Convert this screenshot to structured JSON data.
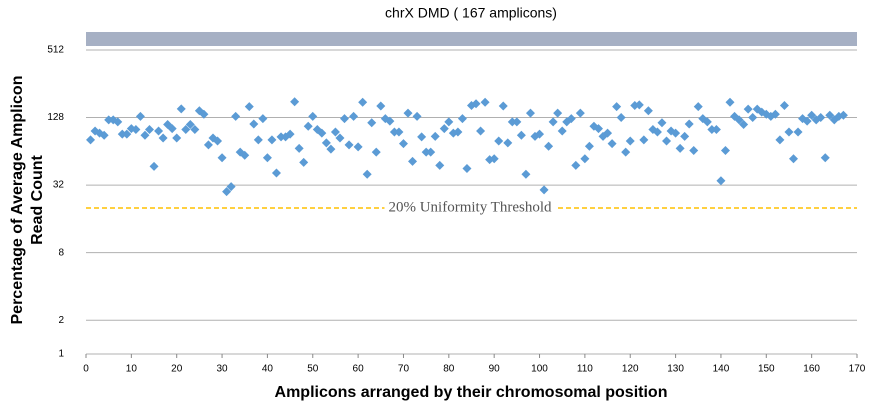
{
  "chart_data": {
    "type": "scatter",
    "title": "chrX DMD ( 167 amplicons)",
    "xlabel": "Amplicons arranged by their chromosomal position",
    "ylabel": [
      "Percentage of Average Amplicon",
      "Read Count"
    ],
    "log_y": true,
    "log_base": 2,
    "grid": true,
    "xlim": [
      0,
      170
    ],
    "xticks": [
      0,
      10,
      20,
      30,
      40,
      50,
      60,
      70,
      80,
      90,
      100,
      110,
      120,
      130,
      140,
      150,
      160,
      170
    ],
    "ylim": [
      1,
      740
    ],
    "yticks": [
      1,
      2,
      8,
      32,
      128,
      512
    ],
    "threshold": {
      "value": 20,
      "label": "20% Uniformity Threshold",
      "color": "#ffc000"
    },
    "series": [
      {
        "name": "Amplicons",
        "color": "#5b9bd5",
        "x": [
          1,
          2,
          3,
          4,
          5,
          6,
          7,
          8,
          9,
          10,
          11,
          12,
          13,
          14,
          15,
          16,
          17,
          18,
          19,
          20,
          21,
          22,
          23,
          24,
          25,
          26,
          27,
          28,
          29,
          30,
          31,
          32,
          33,
          34,
          35,
          36,
          37,
          38,
          39,
          40,
          41,
          42,
          43,
          44,
          45,
          46,
          47,
          48,
          49,
          50,
          51,
          52,
          53,
          54,
          55,
          56,
          57,
          58,
          59,
          60,
          61,
          62,
          63,
          64,
          65,
          66,
          67,
          68,
          69,
          70,
          71,
          72,
          73,
          74,
          75,
          76,
          77,
          78,
          79,
          80,
          81,
          82,
          83,
          84,
          85,
          86,
          87,
          88,
          89,
          90,
          91,
          92,
          93,
          94,
          95,
          96,
          97,
          98,
          99,
          100,
          101,
          102,
          103,
          104,
          105,
          106,
          107,
          108,
          109,
          110,
          111,
          112,
          113,
          114,
          115,
          116,
          117,
          118,
          119,
          120,
          121,
          122,
          123,
          124,
          125,
          126,
          127,
          128,
          129,
          130,
          131,
          132,
          133,
          134,
          135,
          136,
          137,
          138,
          139,
          140,
          141,
          142,
          143,
          144,
          145,
          146,
          147,
          148,
          149,
          150,
          151,
          152,
          153,
          154,
          155,
          156,
          157,
          158,
          159,
          160,
          161,
          162,
          163,
          164,
          165,
          166,
          167
        ],
        "values": [
          81,
          97,
          93,
          89,
          122,
          122,
          117,
          91,
          91,
          102,
          100,
          131,
          89,
          100,
          47,
          97,
          84,
          111,
          102,
          84,
          153,
          100,
          111,
          100,
          147,
          137,
          73,
          84,
          79,
          56,
          28,
          31,
          131,
          63,
          59,
          160,
          112,
          81,
          125,
          56,
          81,
          41,
          86,
          86,
          91,
          177,
          68,
          51,
          107,
          131,
          100,
          93,
          76,
          67,
          95,
          84,
          125,
          73,
          131,
          70,
          175,
          40,
          115,
          63,
          162,
          125,
          119,
          95,
          95,
          75,
          140,
          52,
          131,
          86,
          63,
          63,
          87,
          48,
          102,
          117,
          93,
          95,
          125,
          45,
          164,
          170,
          97,
          175,
          54,
          55,
          79,
          162,
          76,
          117,
          117,
          89,
          40,
          140,
          87,
          91,
          29,
          71,
          117,
          140,
          97,
          117,
          125,
          48,
          140,
          55,
          71,
          107,
          102,
          87,
          93,
          75,
          160,
          128,
          63,
          79,
          164,
          166,
          81,
          147,
          100,
          95,
          115,
          79,
          97,
          93,
          68,
          87,
          112,
          65,
          160,
          125,
          117,
          100,
          100,
          35,
          65,
          175,
          131,
          122,
          111,
          152,
          128,
          152,
          143,
          137,
          131,
          137,
          81,
          164,
          95,
          55,
          95,
          125,
          119,
          134,
          122,
          128,
          56,
          134,
          122,
          131,
          134
        ]
      }
    ]
  }
}
